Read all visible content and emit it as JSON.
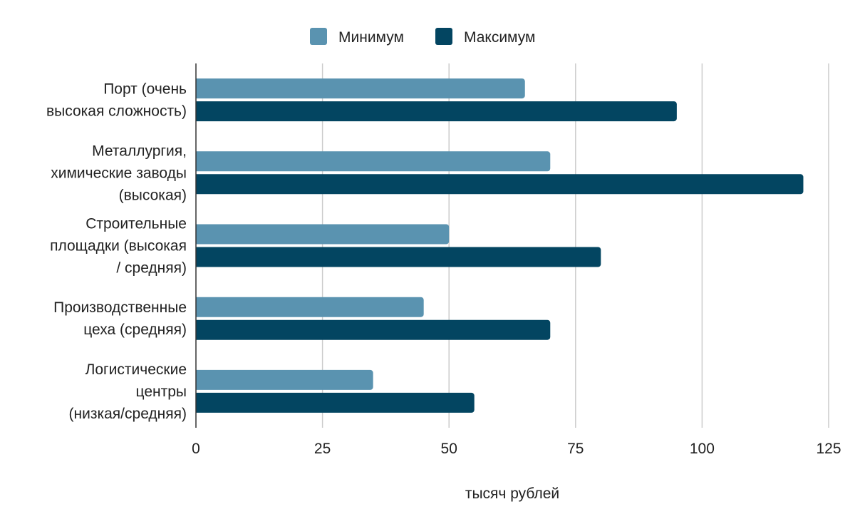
{
  "chart_data": {
    "type": "bar",
    "orientation": "horizontal",
    "categories": [
      [
        "Порт (очень",
        "высокая сложность)"
      ],
      [
        "Металлургия,",
        "химические заводы",
        "(высокая)"
      ],
      [
        "Строительные",
        "площадки (высокая",
        "/ средняя)"
      ],
      [
        "Производственные",
        "цеха (средняя)"
      ],
      [
        "Логистические",
        "центры",
        "(низкая/средняя)"
      ]
    ],
    "series": [
      {
        "name": "Минимум",
        "color": "#5a93b0",
        "values": [
          65,
          70,
          50,
          45,
          35
        ]
      },
      {
        "name": "Максимум",
        "color": "#034561",
        "values": [
          95,
          120,
          80,
          70,
          55
        ]
      }
    ],
    "xlabel": "тысяч рублей",
    "xlim": [
      0,
      125
    ],
    "xticks": [
      "0",
      "25",
      "50",
      "75",
      "100",
      "125"
    ],
    "grid": true,
    "legend_position": "top-center"
  }
}
